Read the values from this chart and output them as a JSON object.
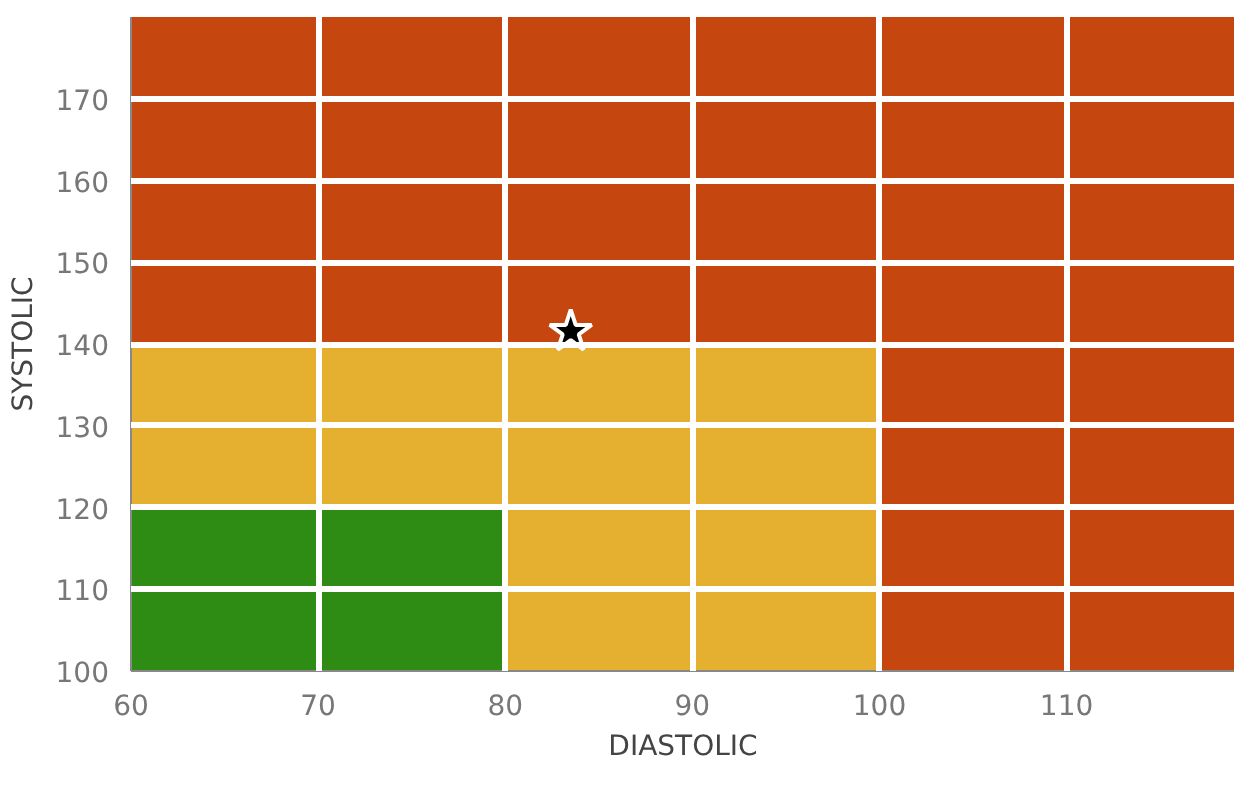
{
  "chart_data": {
    "type": "area",
    "xlabel": "DIASTOLIC",
    "ylabel": "SYSTOLIC",
    "series": [
      {
        "type": "scatter",
        "marker": "star",
        "color": "#000000",
        "x": [
          83.5
        ],
        "values": [
          141.5
        ]
      },
      {
        "color": "#2e8b14",
        "x": [
          60,
          80
        ],
        "values": [
          120,
          120
        ]
      },
      {
        "color": "#e5b030",
        "x": [
          60,
          100
        ],
        "values": [
          140,
          140
        ]
      }
    ],
    "bands": [
      {
        "axis": "y",
        "from": 100,
        "to": 180,
        "color": "#c5470f"
      }
    ],
    "xlim": [
      60,
      119
    ],
    "ylim": [
      100,
      180
    ],
    "xticks": [
      60,
      70,
      80,
      90,
      100,
      110
    ],
    "yticks": [
      100,
      110,
      120,
      130,
      140,
      150,
      160,
      170
    ],
    "grid": true
  }
}
